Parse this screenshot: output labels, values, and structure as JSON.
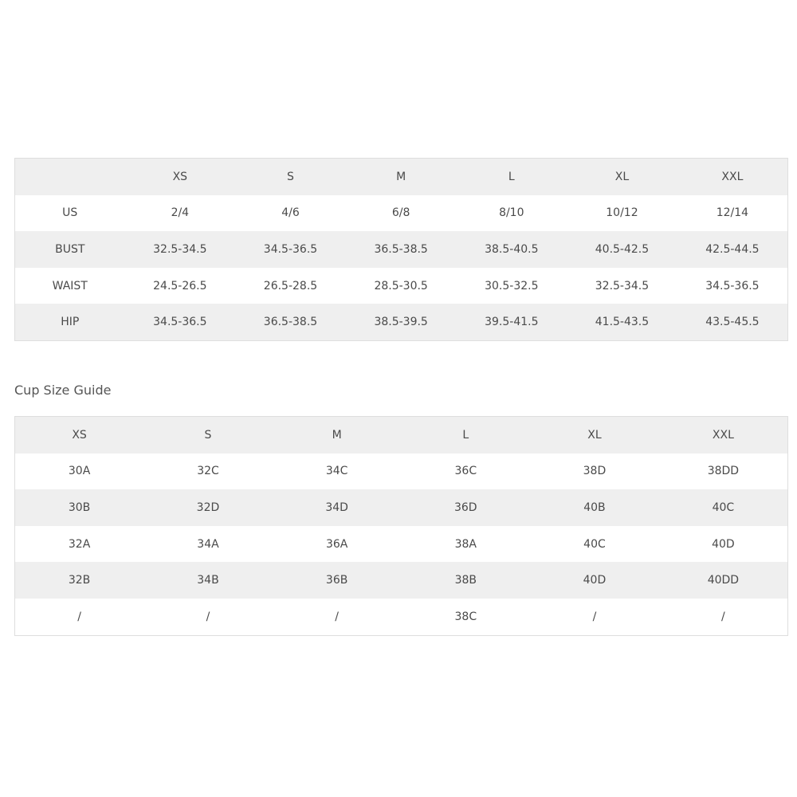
{
  "size_chart": {
    "headers": [
      "",
      "XS",
      "S",
      "M",
      "L",
      "XL",
      "XXL"
    ],
    "rows": [
      [
        "US",
        "2/4",
        "4/6",
        "6/8",
        "8/10",
        "10/12",
        "12/14"
      ],
      [
        "BUST",
        "32.5-34.5",
        "34.5-36.5",
        "36.5-38.5",
        "38.5-40.5",
        "40.5-42.5",
        "42.5-44.5"
      ],
      [
        "WAIST",
        "24.5-26.5",
        "26.5-28.5",
        "28.5-30.5",
        "30.5-32.5",
        "32.5-34.5",
        "34.5-36.5"
      ],
      [
        "HIP",
        "34.5-36.5",
        "36.5-38.5",
        "38.5-39.5",
        "39.5-41.5",
        "41.5-43.5",
        "43.5-45.5"
      ]
    ]
  },
  "cup_guide": {
    "title": "Cup Size Guide",
    "headers": [
      "XS",
      "S",
      "M",
      "L",
      "XL",
      "XXL"
    ],
    "rows": [
      [
        "30A",
        "32C",
        "34C",
        "36C",
        "38D",
        "38DD"
      ],
      [
        "30B",
        "32D",
        "34D",
        "36D",
        "40B",
        "40C"
      ],
      [
        "32A",
        "34A",
        "36A",
        "38A",
        "40C",
        "40D"
      ],
      [
        "32B",
        "34B",
        "36B",
        "38B",
        "40D",
        "40DD"
      ],
      [
        "/",
        "/",
        "/",
        "38C",
        "/",
        "/"
      ]
    ]
  },
  "colors": {
    "header_bg": "#efefef",
    "border": "#dedede",
    "text": "#4a4a4a"
  }
}
